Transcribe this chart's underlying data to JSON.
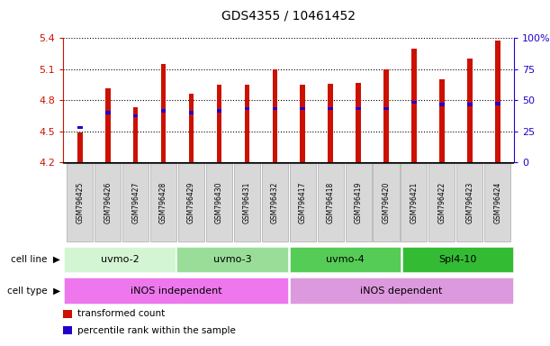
{
  "title": "GDS4355 / 10461452",
  "samples": [
    "GSM796425",
    "GSM796426",
    "GSM796427",
    "GSM796428",
    "GSM796429",
    "GSM796430",
    "GSM796431",
    "GSM796432",
    "GSM796417",
    "GSM796418",
    "GSM796419",
    "GSM796420",
    "GSM796421",
    "GSM796422",
    "GSM796423",
    "GSM796424"
  ],
  "bar_heights": [
    4.49,
    4.92,
    4.73,
    5.15,
    4.86,
    4.95,
    4.95,
    5.1,
    4.95,
    4.96,
    4.97,
    5.1,
    5.3,
    5.0,
    5.2,
    5.38
  ],
  "blue_positions": [
    4.54,
    4.68,
    4.65,
    4.7,
    4.68,
    4.7,
    4.72,
    4.72,
    4.72,
    4.72,
    4.72,
    4.72,
    4.78,
    4.76,
    4.76,
    4.77
  ],
  "bar_color": "#cc1100",
  "blue_color": "#2200cc",
  "ymin": 4.2,
  "ymax": 5.4,
  "yticks": [
    4.2,
    4.5,
    4.8,
    5.1,
    5.4
  ],
  "right_yticks_pct": [
    0,
    25,
    50,
    75,
    100
  ],
  "right_ytick_labels": [
    "0",
    "25",
    "50",
    "75",
    "100%"
  ],
  "cell_lines": [
    {
      "label": "uvmo-2",
      "start": 0,
      "end": 4,
      "color": "#d4f5d4"
    },
    {
      "label": "uvmo-3",
      "start": 4,
      "end": 8,
      "color": "#99dd99"
    },
    {
      "label": "uvmo-4",
      "start": 8,
      "end": 12,
      "color": "#55cc55"
    },
    {
      "label": "Spl4-10",
      "start": 12,
      "end": 16,
      "color": "#33bb33"
    }
  ],
  "cell_types": [
    {
      "label": "iNOS independent",
      "start": 0,
      "end": 8,
      "color": "#ee77ee"
    },
    {
      "label": "iNOS dependent",
      "start": 8,
      "end": 16,
      "color": "#dd99dd"
    }
  ],
  "legend_items": [
    {
      "color": "#cc1100",
      "label": "transformed count"
    },
    {
      "color": "#2200cc",
      "label": "percentile rank within the sample"
    }
  ],
  "bar_width": 0.18
}
